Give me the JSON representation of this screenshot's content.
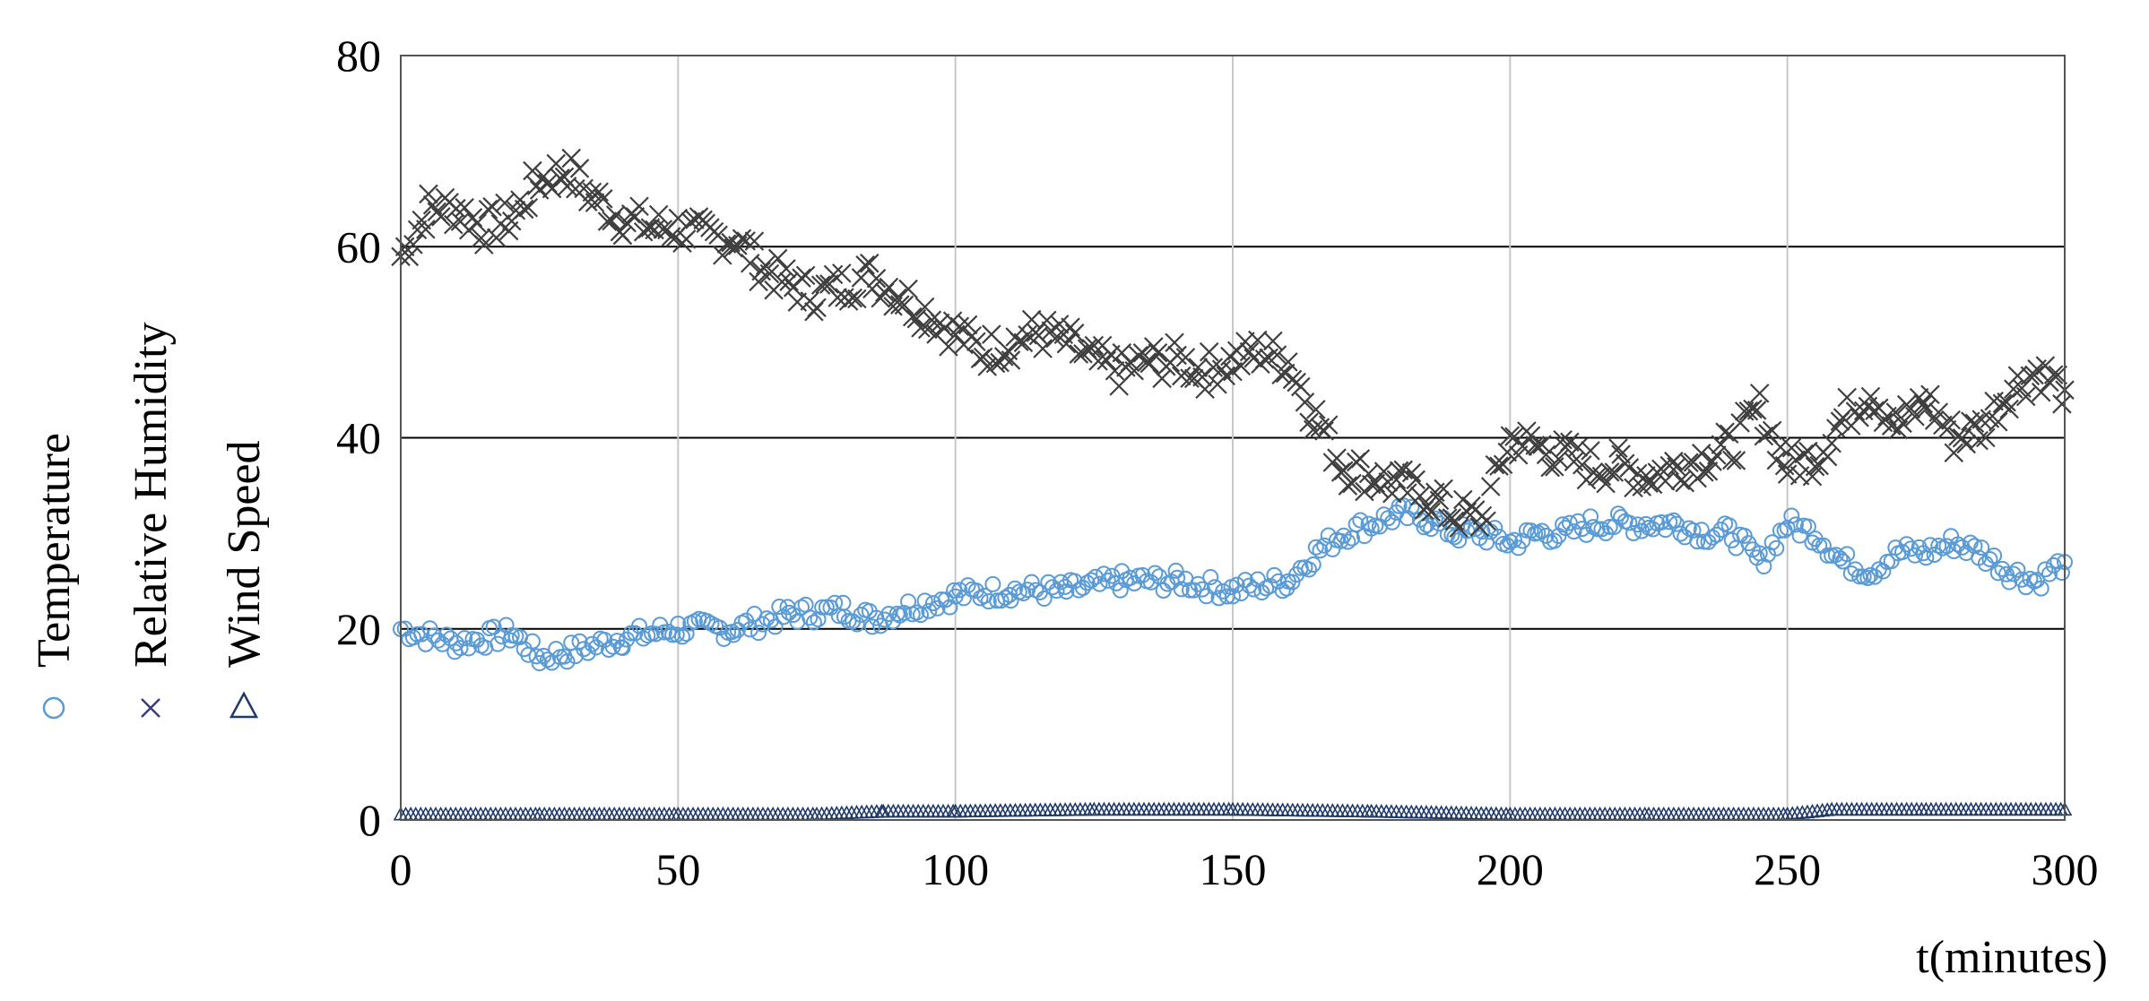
{
  "chart_data": {
    "type": "scatter",
    "title": "",
    "xlabel": "t(minutes)",
    "ylabel": "",
    "xlim": [
      0,
      300
    ],
    "ylim": [
      0,
      80
    ],
    "xticks": [
      "0",
      "50",
      "100",
      "150",
      "200",
      "250",
      "300"
    ],
    "yticks": [
      "0",
      "20",
      "40",
      "60",
      "80"
    ],
    "grid": true,
    "legend_position": "left, rotated vertical",
    "series": [
      {
        "name": "Temperature",
        "marker": "circle",
        "color": "#5b9bd5",
        "x": [
          0,
          10,
          20,
          25,
          30,
          40,
          50,
          60,
          70,
          80,
          85,
          90,
          100,
          110,
          120,
          130,
          140,
          150,
          160,
          165,
          170,
          175,
          180,
          185,
          190,
          195,
          200,
          205,
          210,
          215,
          220,
          225,
          230,
          235,
          240,
          245,
          250,
          255,
          260,
          265,
          270,
          275,
          280,
          285,
          290,
          295,
          300
        ],
        "y": [
          20,
          18.5,
          19.5,
          17,
          17.5,
          19,
          20,
          20,
          21.5,
          22,
          21,
          22,
          23.5,
          24,
          24,
          25,
          25,
          24,
          25,
          28,
          30,
          31,
          32,
          31.5,
          30,
          30,
          29,
          30,
          30,
          31,
          31,
          31,
          31,
          30,
          30,
          27,
          31,
          30,
          27,
          26,
          28,
          28,
          29,
          28,
          26,
          25,
          27
        ]
      },
      {
        "name": "Relative Humidity",
        "marker": "x",
        "color": "#3f3f3f",
        "x": [
          0,
          5,
          10,
          15,
          20,
          25,
          30,
          35,
          40,
          45,
          50,
          55,
          60,
          65,
          70,
          75,
          80,
          85,
          90,
          95,
          100,
          105,
          110,
          115,
          120,
          125,
          130,
          135,
          140,
          145,
          150,
          155,
          160,
          165,
          170,
          175,
          180,
          185,
          190,
          195,
          200,
          205,
          210,
          215,
          220,
          225,
          230,
          235,
          240,
          245,
          250,
          255,
          260,
          265,
          270,
          275,
          280,
          285,
          290,
          295,
          300
        ],
        "y": [
          59,
          64,
          64,
          62,
          63,
          67,
          68,
          65,
          63,
          62,
          62,
          61,
          61,
          58,
          56,
          55,
          56,
          57,
          55,
          53,
          51,
          49,
          50,
          51,
          50,
          48,
          47,
          48,
          48,
          47,
          48,
          49,
          48,
          42,
          37,
          36,
          35,
          34,
          32,
          31.5,
          40,
          39,
          38,
          37,
          37,
          36,
          37,
          38,
          39,
          43,
          37,
          38,
          42,
          45,
          41,
          44,
          40,
          41,
          45,
          47,
          45
        ]
      },
      {
        "name": "Wind Speed",
        "marker": "triangle",
        "color": "#1f3a68",
        "x": [
          0,
          25,
          50,
          75,
          87,
          100,
          125,
          150,
          175,
          200,
          225,
          250,
          258,
          275,
          300
        ],
        "y": [
          0.5,
          0.5,
          0.5,
          0.5,
          0.8,
          0.8,
          1,
          1,
          0.8,
          0.5,
          0.5,
          0.5,
          1,
          1,
          1
        ]
      }
    ]
  }
}
